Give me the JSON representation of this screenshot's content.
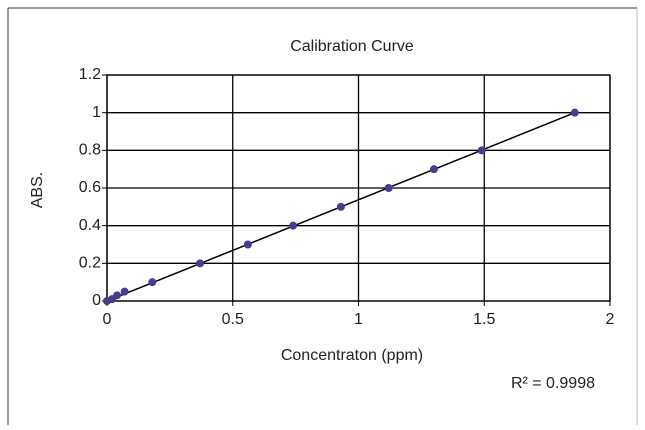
{
  "chart_data": {
    "type": "scatter",
    "title": "Calibration Curve",
    "x_label": "Concentraton (ppm)",
    "y_label": "ABS.",
    "annotation": "R² = 0.9998",
    "x": [
      0,
      0.02,
      0.04,
      0.07,
      0.18,
      0.37,
      0.56,
      0.74,
      0.93,
      1.12,
      1.3,
      1.49,
      1.86
    ],
    "values": [
      0,
      0.01,
      0.03,
      0.05,
      0.1,
      0.2,
      0.3,
      0.4,
      0.5,
      0.6,
      0.7,
      0.8,
      1.0
    ],
    "color": "#4b3b8c",
    "trendline": {
      "x": [
        0,
        1.86
      ],
      "values": [
        0,
        1.0
      ],
      "color": "#000000"
    },
    "xlim": [
      0,
      2
    ],
    "xticks": [
      0,
      0.5,
      1,
      1.5,
      2
    ],
    "ylim": [
      0,
      1.2
    ],
    "yticks": [
      0,
      0.2,
      0.4,
      0.6,
      0.8,
      1,
      1.2
    ],
    "grid": true
  }
}
